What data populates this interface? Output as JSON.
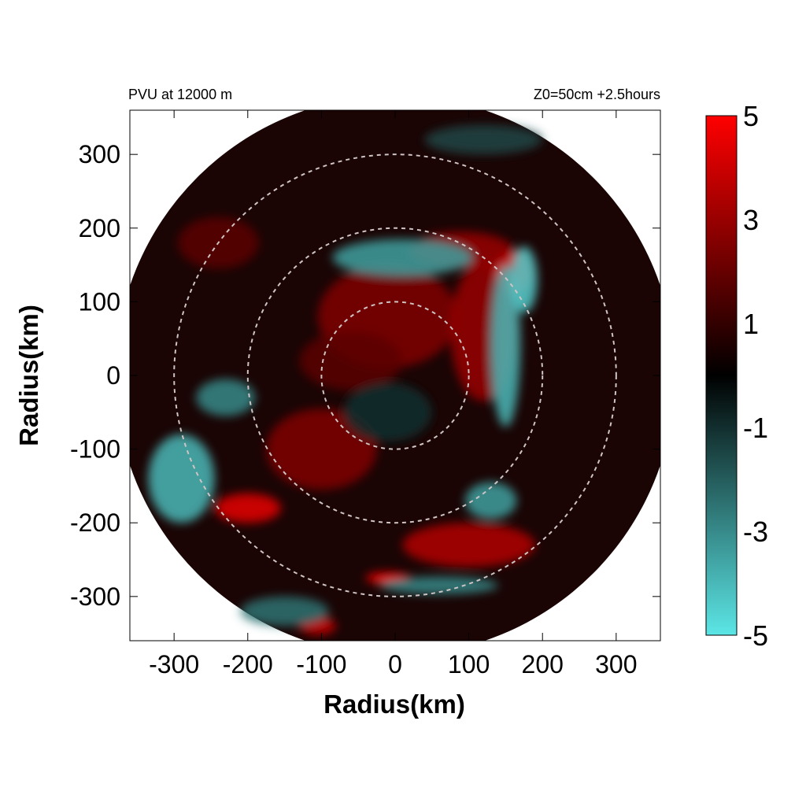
{
  "chart_data": {
    "type": "heatmap",
    "title_left": "PVU at 12000 m",
    "title_right": "Z0=50cm  +2.5hours",
    "xlabel": "Radius(km)",
    "ylabel": "Radius(km)",
    "xlim": [
      -360,
      360
    ],
    "ylim": [
      -360,
      360
    ],
    "domain_radius": 380,
    "xticks": [
      -300,
      -200,
      -100,
      0,
      100,
      200,
      300
    ],
    "yticks": [
      300,
      200,
      100,
      0,
      -100,
      -200,
      -300
    ],
    "xtick_labels": [
      "-300",
      "-200",
      "-100",
      "0",
      "100",
      "200",
      "300"
    ],
    "ytick_labels": [
      "300",
      "200",
      "100",
      "0",
      "-100",
      "-200",
      "-300"
    ],
    "range_rings_km": [
      100,
      200,
      300
    ],
    "colorbar": {
      "min": -5,
      "max": 5,
      "ticks": [
        5,
        3,
        1,
        -1,
        -3,
        -5
      ],
      "tick_labels": [
        "5",
        "3",
        "1",
        "-1",
        "-3",
        "-5"
      ],
      "colors": {
        "positive": "#ff0000",
        "zero": "#000000",
        "negative": "#5ce6e6"
      }
    },
    "features": [
      {
        "kind": "positive",
        "x": -10,
        "y": 80,
        "rx": 95,
        "ry": 70,
        "value": 2.5
      },
      {
        "kind": "positive",
        "x": -100,
        "y": -100,
        "rx": 75,
        "ry": 55,
        "value": 2.5
      },
      {
        "kind": "positive",
        "x": 120,
        "y": 60,
        "rx": 45,
        "ry": 95,
        "value": 3.0
      },
      {
        "kind": "positive",
        "x": 160,
        "y": 140,
        "rx": 25,
        "ry": 30,
        "value": 4.5
      },
      {
        "kind": "positive",
        "x": 90,
        "y": 170,
        "rx": 70,
        "ry": 25,
        "value": 3.0
      },
      {
        "kind": "positive",
        "x": -200,
        "y": -180,
        "rx": 45,
        "ry": 20,
        "value": 4.5
      },
      {
        "kind": "positive",
        "x": 100,
        "y": -230,
        "rx": 90,
        "ry": 30,
        "value": 3.5
      },
      {
        "kind": "positive",
        "x": -10,
        "y": -275,
        "rx": 30,
        "ry": 8,
        "value": 5.0
      },
      {
        "kind": "positive",
        "x": -105,
        "y": -340,
        "rx": 25,
        "ry": 12,
        "value": 4.0
      },
      {
        "kind": "positive",
        "x": -240,
        "y": 180,
        "rx": 55,
        "ry": 35,
        "value": 1.8
      },
      {
        "kind": "positive",
        "x": -60,
        "y": 20,
        "rx": 70,
        "ry": 40,
        "value": 1.8
      },
      {
        "kind": "negative",
        "x": 150,
        "y": 40,
        "rx": 20,
        "ry": 110,
        "value": -4.0
      },
      {
        "kind": "negative",
        "x": 175,
        "y": 130,
        "rx": 18,
        "ry": 45,
        "value": -4.5
      },
      {
        "kind": "negative",
        "x": 10,
        "y": 160,
        "rx": 95,
        "ry": 25,
        "value": -3.5
      },
      {
        "kind": "negative",
        "x": -290,
        "y": -140,
        "rx": 45,
        "ry": 60,
        "value": -4.0
      },
      {
        "kind": "negative",
        "x": -230,
        "y": -30,
        "rx": 40,
        "ry": 25,
        "value": -3.0
      },
      {
        "kind": "negative",
        "x": 60,
        "y": -285,
        "rx": 80,
        "ry": 12,
        "value": -3.0
      },
      {
        "kind": "negative",
        "x": 130,
        "y": -170,
        "rx": 35,
        "ry": 25,
        "value": -3.5
      },
      {
        "kind": "negative",
        "x": -150,
        "y": -320,
        "rx": 60,
        "ry": 20,
        "value": -2.5
      },
      {
        "kind": "negative",
        "x": 120,
        "y": 320,
        "rx": 80,
        "ry": 20,
        "value": -1.5
      },
      {
        "kind": "negative",
        "x": -10,
        "y": -50,
        "rx": 60,
        "ry": 40,
        "value": -1.0
      }
    ]
  }
}
